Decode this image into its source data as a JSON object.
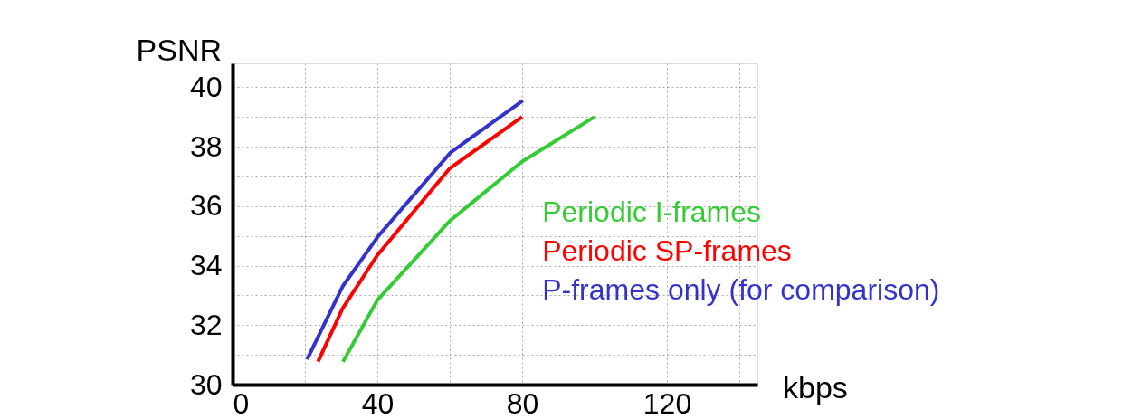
{
  "chart_data": {
    "type": "line",
    "xlabel": "kbps",
    "ylabel": "PSNR",
    "xlim": [
      0,
      145
    ],
    "ylim": [
      30,
      40.8
    ],
    "xticks": [
      0,
      {
        "value": 20,
        "label": null
      },
      40,
      {
        "value": 60,
        "label": null
      },
      80,
      {
        "value": 100,
        "label": null
      },
      120,
      {
        "value": 140,
        "label": null
      }
    ],
    "yticks": [
      30,
      {
        "value": 31,
        "label": null
      },
      32,
      {
        "value": 33,
        "label": null
      },
      34,
      {
        "value": 35,
        "label": null
      },
      36,
      {
        "value": 37,
        "label": null
      },
      38,
      {
        "value": 39,
        "label": null
      },
      40
    ],
    "grid": true,
    "legend": "right",
    "marker": "none",
    "line_style": "solid",
    "series": [
      {
        "name": "Periodic I-frames",
        "color": "#33cc33",
        "x": [
          30.5,
          40,
          60,
          80,
          100
        ],
        "values": [
          30.77,
          32.84,
          35.5,
          37.5,
          39.0
        ]
      },
      {
        "name": "Periodic SP-frames",
        "color": "#ff0000",
        "x": [
          23.6,
          30.4,
          40,
          60,
          80
        ],
        "values": [
          30.77,
          32.56,
          34.35,
          37.27,
          39.0
        ]
      },
      {
        "name": "P-frames only (for comparison)",
        "color": "#3333cc",
        "x": [
          20.6,
          30.4,
          40.3,
          60.2,
          80.2
        ],
        "values": [
          30.85,
          33.3,
          35.0,
          37.8,
          39.55
        ]
      }
    ]
  }
}
